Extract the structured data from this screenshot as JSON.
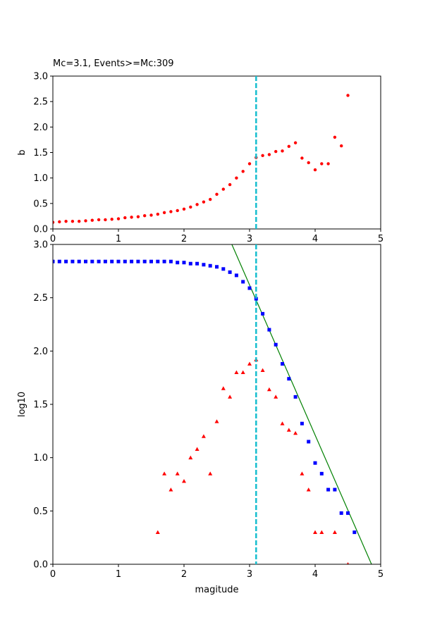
{
  "chart_data": [
    {
      "type": "scatter",
      "title": "Mc=3.1, Events>=Mc:309",
      "xlabel": "",
      "ylabel": "b",
      "xlim": [
        0,
        5
      ],
      "ylim": [
        0,
        3.0
      ],
      "xticks": [
        "0",
        "1",
        "2",
        "3",
        "4",
        "5"
      ],
      "yticks": [
        "0.0",
        "0.5",
        "1.0",
        "1.5",
        "2.0",
        "2.5",
        "3.0"
      ],
      "grid": false,
      "vline": {
        "x": 3.1,
        "color": "#17becf",
        "style": "dashed"
      },
      "series": [
        {
          "color": "#ff0000",
          "marker": "circle",
          "x": [
            0.0,
            0.1,
            0.2,
            0.3,
            0.4,
            0.5,
            0.6,
            0.7,
            0.8,
            0.9,
            1.0,
            1.1,
            1.2,
            1.3,
            1.4,
            1.5,
            1.6,
            1.7,
            1.8,
            1.9,
            2.0,
            2.1,
            2.2,
            2.3,
            2.4,
            2.5,
            2.6,
            2.7,
            2.8,
            2.9,
            3.0,
            3.1,
            3.2,
            3.3,
            3.4,
            3.5,
            3.6,
            3.7,
            3.8,
            3.9,
            4.0,
            4.1,
            4.2,
            4.3,
            4.4,
            4.5
          ],
          "y": [
            0.13,
            0.14,
            0.15,
            0.15,
            0.15,
            0.16,
            0.17,
            0.18,
            0.18,
            0.19,
            0.2,
            0.22,
            0.23,
            0.24,
            0.26,
            0.27,
            0.29,
            0.32,
            0.34,
            0.36,
            0.39,
            0.43,
            0.48,
            0.53,
            0.58,
            0.68,
            0.78,
            0.87,
            1.0,
            1.13,
            1.28,
            1.4,
            1.44,
            1.46,
            1.52,
            1.53,
            1.62,
            1.69,
            1.39,
            1.3,
            1.16,
            1.28,
            1.28,
            1.8,
            1.63,
            2.62
          ]
        }
      ]
    },
    {
      "type": "scatter",
      "title": "",
      "xlabel": "magitude",
      "ylabel": "log10",
      "xlim": [
        0,
        5
      ],
      "ylim": [
        0,
        3.0
      ],
      "xticks": [
        "0",
        "1",
        "2",
        "3",
        "4",
        "5"
      ],
      "yticks": [
        "0.0",
        "0.5",
        "1.0",
        "1.5",
        "2.0",
        "2.5",
        "3.0"
      ],
      "grid": false,
      "vline": {
        "x": 3.1,
        "color": "#17becf",
        "style": "dashed"
      },
      "fit_line": {
        "color": "#008000",
        "x": [
          2.73,
          4.86
        ],
        "y": [
          3.0,
          0.0
        ]
      },
      "series": [
        {
          "color": "#0000ff",
          "marker": "square",
          "x": [
            0.0,
            0.1,
            0.2,
            0.3,
            0.4,
            0.5,
            0.6,
            0.7,
            0.8,
            0.9,
            1.0,
            1.1,
            1.2,
            1.3,
            1.4,
            1.5,
            1.6,
            1.7,
            1.8,
            1.9,
            2.0,
            2.1,
            2.2,
            2.3,
            2.4,
            2.5,
            2.6,
            2.7,
            2.8,
            2.9,
            3.0,
            3.1,
            3.2,
            3.3,
            3.4,
            3.5,
            3.6,
            3.7,
            3.8,
            3.9,
            4.0,
            4.1,
            4.2,
            4.3,
            4.4,
            4.5,
            4.6
          ],
          "y": [
            2.84,
            2.84,
            2.84,
            2.84,
            2.84,
            2.84,
            2.84,
            2.84,
            2.84,
            2.84,
            2.84,
            2.84,
            2.84,
            2.84,
            2.84,
            2.84,
            2.84,
            2.84,
            2.84,
            2.83,
            2.83,
            2.82,
            2.82,
            2.81,
            2.8,
            2.79,
            2.77,
            2.74,
            2.71,
            2.65,
            2.59,
            2.49,
            2.35,
            2.2,
            2.06,
            1.88,
            1.74,
            1.57,
            1.32,
            1.15,
            0.95,
            0.85,
            0.7,
            0.7,
            0.48,
            0.48,
            0.3
          ]
        },
        {
          "color": "#ff0000",
          "marker": "triangle",
          "x": [
            1.6,
            1.7,
            1.8,
            1.9,
            2.0,
            2.1,
            2.2,
            2.3,
            2.4,
            2.5,
            2.6,
            2.7,
            2.8,
            2.9,
            3.0,
            3.1,
            3.2,
            3.3,
            3.4,
            3.5,
            3.6,
            3.7,
            3.8,
            3.9,
            4.0,
            4.1,
            4.3,
            4.5
          ],
          "y": [
            0.3,
            0.85,
            0.7,
            0.85,
            0.78,
            1.0,
            1.08,
            1.2,
            0.85,
            1.34,
            1.65,
            1.57,
            1.8,
            1.8,
            1.88,
            1.92,
            1.82,
            1.64,
            1.57,
            1.32,
            1.26,
            1.23,
            0.85,
            0.7,
            0.3,
            0.3,
            0.3,
            0.0
          ]
        }
      ]
    }
  ]
}
